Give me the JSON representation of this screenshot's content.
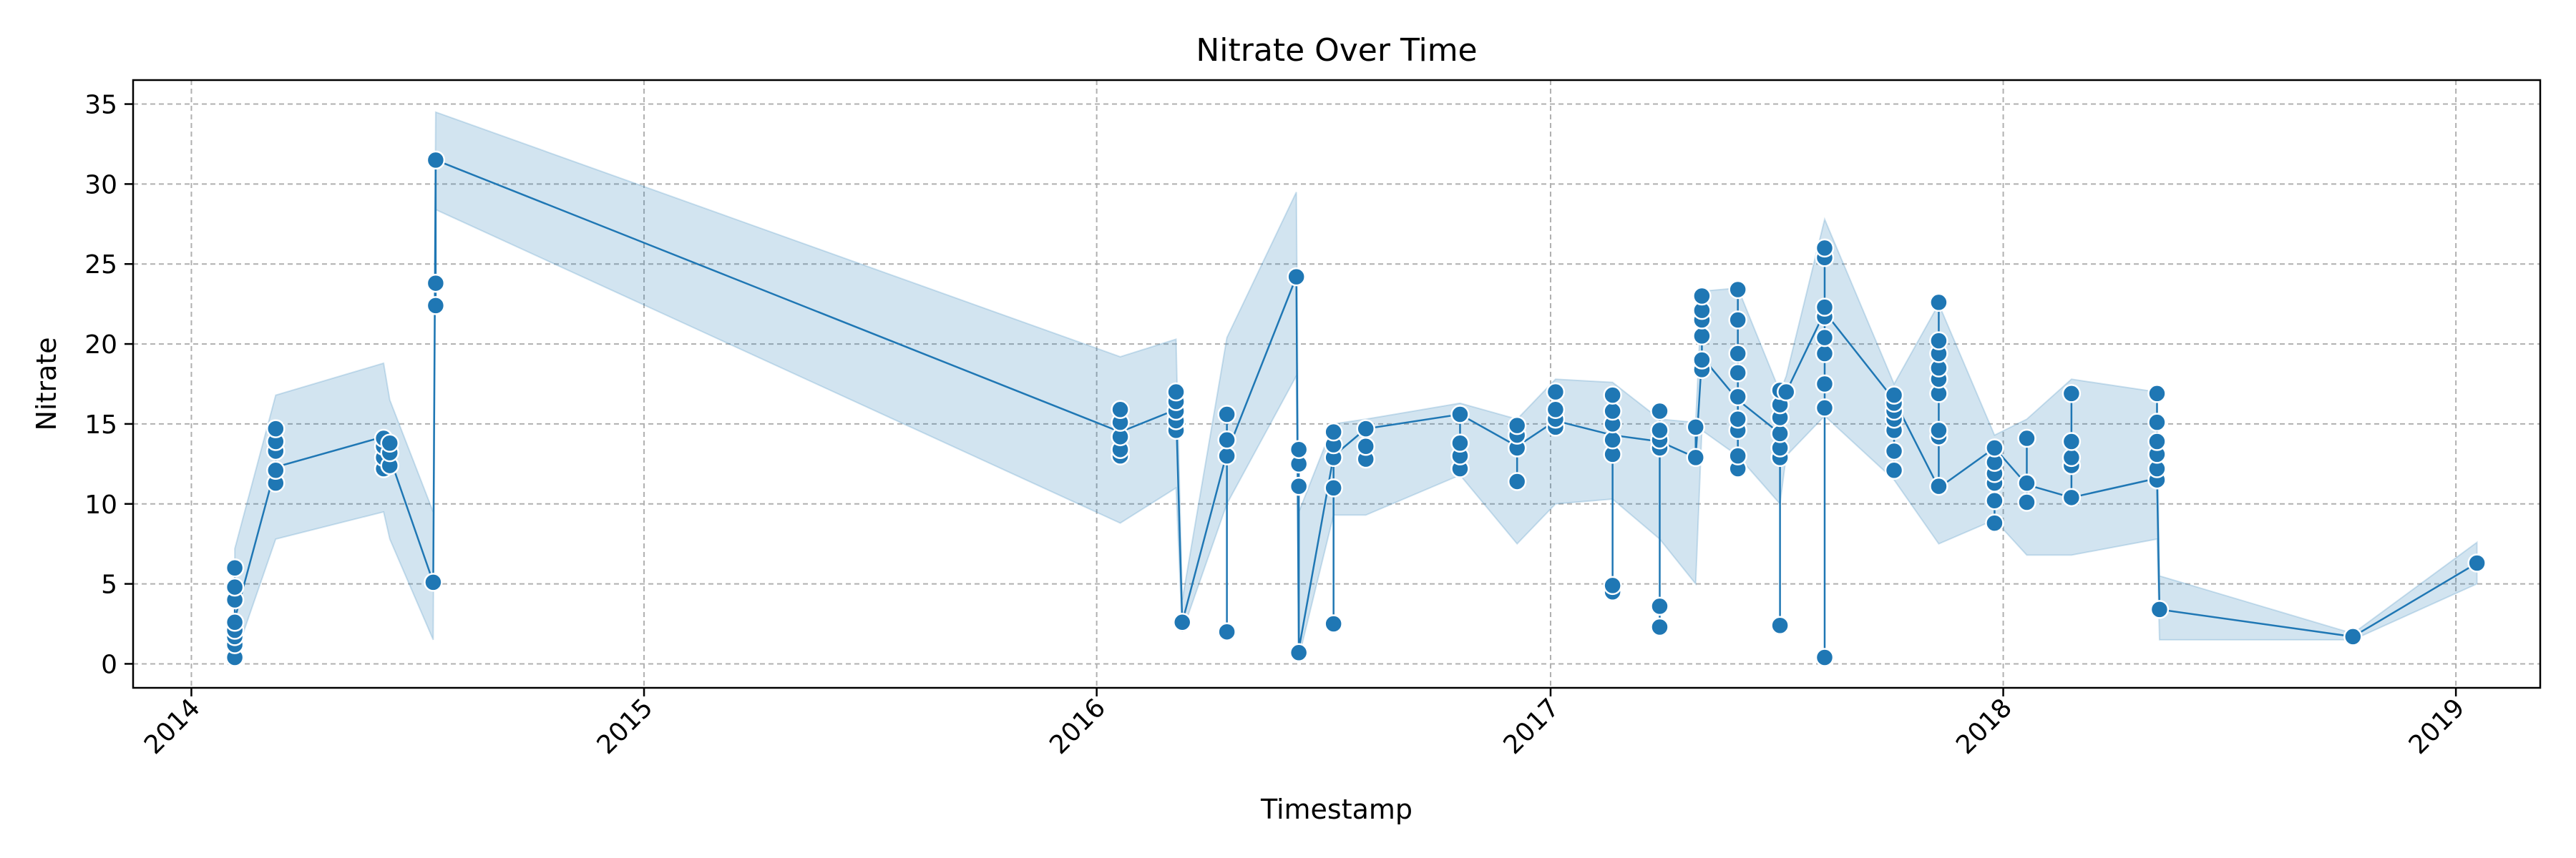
{
  "chart_data": {
    "type": "line",
    "title": "Nitrate Over Time",
    "xlabel": "Timestamp",
    "ylabel": "Nitrate",
    "xlim": [
      "2013-11-15",
      "2019-03-10"
    ],
    "ylim": [
      -1.5,
      36.5
    ],
    "x_ticks": [
      "2014",
      "2015",
      "2016",
      "2017",
      "2018",
      "2019"
    ],
    "y_ticks": [
      0,
      5,
      10,
      15,
      20,
      25,
      30,
      35
    ],
    "grid": true,
    "colors": {
      "series": "#1f77b4",
      "grid": "#b0b0b0"
    },
    "series": [
      {
        "points": [
          {
            "x": "2014-02-05",
            "mean": 2.8,
            "low": 0.4,
            "high": 7.2,
            "values": [
              0.4,
              1.2,
              1.7,
              2.1,
              2.6,
              4.0,
              4.8,
              6.0
            ]
          },
          {
            "x": "2014-03-10",
            "mean": 12.3,
            "low": 7.8,
            "high": 16.8,
            "values": [
              11.3,
              12.1,
              13.3,
              13.9,
              14.7
            ]
          },
          {
            "x": "2014-06-05",
            "mean": 14.2,
            "low": 9.5,
            "high": 18.8,
            "values": [
              12.2,
              12.9,
              13.6,
              14.1
            ]
          },
          {
            "x": "2014-06-10",
            "mean": 12.9,
            "low": 7.8,
            "high": 16.5,
            "values": [
              12.4,
              13.2,
              13.8
            ]
          },
          {
            "x": "2014-07-15",
            "mean": 5.1,
            "low": 1.5,
            "high": 9.5,
            "values": [
              5.1
            ]
          },
          {
            "x": "2014-07-17",
            "mean": 31.5,
            "low": 28.4,
            "high": 34.5,
            "values": [
              22.4,
              23.8,
              31.5
            ]
          },
          {
            "x": "2016-01-20",
            "mean": 14.5,
            "low": 8.8,
            "high": 19.2,
            "values": [
              13.0,
              13.4,
              14.2,
              15.1,
              15.9
            ]
          },
          {
            "x": "2016-03-05",
            "mean": 15.9,
            "low": 11.0,
            "high": 20.3,
            "values": [
              14.6,
              15.2,
              15.8,
              16.4,
              17.0
            ]
          },
          {
            "x": "2016-03-10",
            "mean": 2.6,
            "low": 2.0,
            "high": 4.0,
            "values": [
              2.6
            ]
          },
          {
            "x": "2016-04-15",
            "mean": 13.2,
            "low": 10.0,
            "high": 20.4,
            "values": [
              2.0,
              13.0,
              14.0,
              15.6
            ]
          },
          {
            "x": "2016-06-10",
            "mean": 24.2,
            "low": 18.0,
            "high": 29.5,
            "values": [
              24.2
            ]
          },
          {
            "x": "2016-06-12",
            "mean": 0.9,
            "low": 0.4,
            "high": 9.5,
            "values": [
              0.7,
              11.1,
              12.5,
              13.4
            ]
          },
          {
            "x": "2016-07-10",
            "mean": 13.0,
            "low": 9.3,
            "high": 15.0,
            "values": [
              2.5,
              11.0,
              12.9,
              13.7,
              14.5
            ]
          },
          {
            "x": "2016-08-05",
            "mean": 14.7,
            "low": 9.3,
            "high": 15.3,
            "values": [
              12.8,
              13.6,
              14.7
            ]
          },
          {
            "x": "2016-10-20",
            "mean": 15.6,
            "low": 11.8,
            "high": 16.3,
            "values": [
              12.2,
              13.0,
              13.8,
              15.6
            ]
          },
          {
            "x": "2016-12-05",
            "mean": 13.6,
            "low": 7.5,
            "high": 15.3,
            "values": [
              11.4,
              13.5,
              14.3,
              14.9
            ]
          },
          {
            "x": "2017-01-05",
            "mean": 15.2,
            "low": 10.0,
            "high": 17.8,
            "values": [
              14.8,
              15.3,
              15.9,
              17.0
            ]
          },
          {
            "x": "2017-02-20",
            "mean": 14.3,
            "low": 10.3,
            "high": 17.6,
            "values": [
              4.5,
              4.9,
              13.1,
              14.0,
              15.0,
              15.8,
              16.8
            ]
          },
          {
            "x": "2017-03-30",
            "mean": 13.9,
            "low": 7.8,
            "high": 15.3,
            "values": [
              2.3,
              3.6,
              13.5,
              14.0,
              14.6,
              15.8
            ]
          },
          {
            "x": "2017-04-28",
            "mean": 12.9,
            "low": 5.0,
            "high": 15.1,
            "values": [
              12.9,
              14.8
            ]
          },
          {
            "x": "2017-05-03",
            "mean": 19.2,
            "low": 14.6,
            "high": 23.3,
            "values": [
              18.4,
              19.0,
              20.5,
              21.5,
              22.1,
              23.0
            ]
          },
          {
            "x": "2017-06-01",
            "mean": 16.5,
            "low": 13.0,
            "high": 23.5,
            "values": [
              12.2,
              13.0,
              14.6,
              15.3,
              16.7,
              18.2,
              19.4,
              21.5,
              23.4
            ]
          },
          {
            "x": "2017-07-05",
            "mean": 14.4,
            "low": 10.0,
            "high": 17.0,
            "values": [
              2.4,
              12.9,
              13.5,
              14.4,
              15.4,
              16.2,
              17.1
            ]
          },
          {
            "x": "2017-07-10",
            "mean": 17.0,
            "low": 13.0,
            "high": 18.0,
            "values": [
              17.0
            ]
          },
          {
            "x": "2017-08-10",
            "mean": 22.0,
            "low": 15.5,
            "high": 27.8,
            "values": [
              0.4,
              16.0,
              17.5,
              19.4,
              20.4,
              21.7,
              22.3,
              25.4,
              26.0
            ]
          },
          {
            "x": "2017-10-05",
            "mean": 16.5,
            "low": 11.5,
            "high": 17.5,
            "values": [
              12.1,
              13.3,
              14.6,
              15.3,
              15.8,
              16.3,
              16.8
            ]
          },
          {
            "x": "2017-11-10",
            "mean": 11.0,
            "low": 7.5,
            "high": 22.5,
            "values": [
              11.1,
              14.2,
              14.6,
              16.9,
              17.8,
              18.5,
              19.4,
              20.2,
              22.6
            ]
          },
          {
            "x": "2017-12-25",
            "mean": 13.5,
            "low": 9.0,
            "high": 14.3,
            "values": [
              8.8,
              10.2,
              11.3,
              11.9,
              12.6,
              13.5
            ]
          },
          {
            "x": "2018-01-20",
            "mean": 11.2,
            "low": 6.8,
            "high": 15.3,
            "values": [
              10.1,
              11.3,
              14.1
            ]
          },
          {
            "x": "2018-02-25",
            "mean": 10.4,
            "low": 6.8,
            "high": 17.8,
            "values": [
              10.4,
              12.4,
              12.9,
              13.9,
              16.9
            ]
          },
          {
            "x": "2018-05-05",
            "mean": 11.6,
            "low": 7.8,
            "high": 17.0,
            "values": [
              11.5,
              12.2,
              13.1,
              13.9,
              15.1,
              16.9
            ]
          },
          {
            "x": "2018-05-07",
            "mean": 3.4,
            "low": 1.5,
            "high": 5.5,
            "values": [
              3.4
            ]
          },
          {
            "x": "2018-10-10",
            "mean": 1.7,
            "low": 1.5,
            "high": 1.9,
            "values": [
              1.7
            ]
          },
          {
            "x": "2019-01-18",
            "mean": 6.3,
            "low": 5.0,
            "high": 7.6,
            "values": [
              6.3
            ]
          }
        ]
      }
    ]
  }
}
